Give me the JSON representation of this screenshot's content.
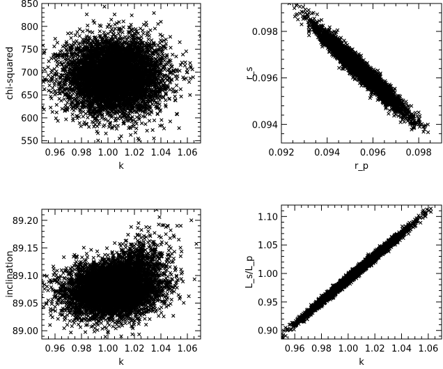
{
  "figure": {
    "panel_count": 4,
    "marker": "x-cross",
    "marker_color": "#000000",
    "grid": false,
    "legend": null
  },
  "chart_data": [
    {
      "type": "scatter",
      "xlabel": "k",
      "ylabel": "chi-squared",
      "xlim": [
        0.95,
        1.07
      ],
      "ylim": [
        545,
        850
      ],
      "xticks": [
        "0.96",
        "0.98",
        "1.00",
        "1.02",
        "1.04",
        "1.06"
      ],
      "yticks": [
        "550",
        "600",
        "650",
        "700",
        "750",
        "800",
        "850"
      ],
      "cloud": {
        "shape": "uncorrelated",
        "center": [
          1.005,
          692
        ],
        "sd": [
          0.018,
          40
        ],
        "correlation": 0.0
      },
      "sample_points": [
        [
          0.952,
          745
        ],
        [
          0.958,
          690
        ],
        [
          1.06,
          700
        ],
        [
          1.062,
          650
        ],
        [
          1.01,
          560
        ],
        [
          1.005,
          826
        ],
        [
          1.04,
          810
        ]
      ]
    },
    {
      "type": "scatter",
      "xlabel": "r_p",
      "ylabel": "r_s",
      "xlim": [
        0.092,
        0.099
      ],
      "ylim": [
        0.0932,
        0.0992
      ],
      "xticks": [
        "0.092",
        "0.094",
        "0.096",
        "0.098"
      ],
      "yticks": [
        "0.094",
        "0.096",
        "0.098"
      ],
      "cloud": {
        "shape": "negatively-correlated",
        "center": [
          0.0955,
          0.0963
        ],
        "sd": [
          0.0009,
          0.00085
        ],
        "correlation": -0.97
      },
      "sample_points": [
        [
          0.0932,
          0.0988
        ],
        [
          0.0934,
          0.0988
        ],
        [
          0.098,
          0.094
        ],
        [
          0.0982,
          0.0939
        ]
      ]
    },
    {
      "type": "scatter",
      "xlabel": "k",
      "ylabel": "inclination",
      "xlim": [
        0.95,
        1.07
      ],
      "ylim": [
        88.985,
        89.22
      ],
      "xticks": [
        "0.96",
        "0.98",
        "1.00",
        "1.02",
        "1.04",
        "1.06"
      ],
      "yticks": [
        "89.00",
        "89.05",
        "89.10",
        "89.15",
        "89.20"
      ],
      "cloud": {
        "shape": "slightly-skewed-upward-at-high-k",
        "center": [
          1.005,
          89.075
        ],
        "sd": [
          0.018,
          0.025
        ],
        "correlation": 0.15
      },
      "sample_points": [
        [
          0.952,
          89.1
        ],
        [
          1.05,
          89.17
        ],
        [
          1.063,
          89.2
        ],
        [
          1.01,
          88.99
        ],
        [
          1.055,
          89.19
        ]
      ]
    },
    {
      "type": "scatter",
      "xlabel": "k",
      "ylabel": "L_s/L_p",
      "xlim": [
        0.95,
        1.07
      ],
      "ylim": [
        0.885,
        1.12
      ],
      "xticks": [
        "0.96",
        "0.98",
        "1.00",
        "1.02",
        "1.04",
        "1.06"
      ],
      "yticks": [
        "0.90",
        "0.95",
        "1.00",
        "1.05",
        "1.10"
      ],
      "cloud": {
        "shape": "tight-linear",
        "center": [
          1.005,
          1.0
        ],
        "sd": [
          0.018,
          0.036
        ],
        "correlation": 0.995
      },
      "sample_points": [
        [
          0.953,
          0.905
        ],
        [
          0.956,
          0.91
        ],
        [
          1.058,
          1.1
        ],
        [
          1.062,
          1.108
        ]
      ]
    }
  ]
}
